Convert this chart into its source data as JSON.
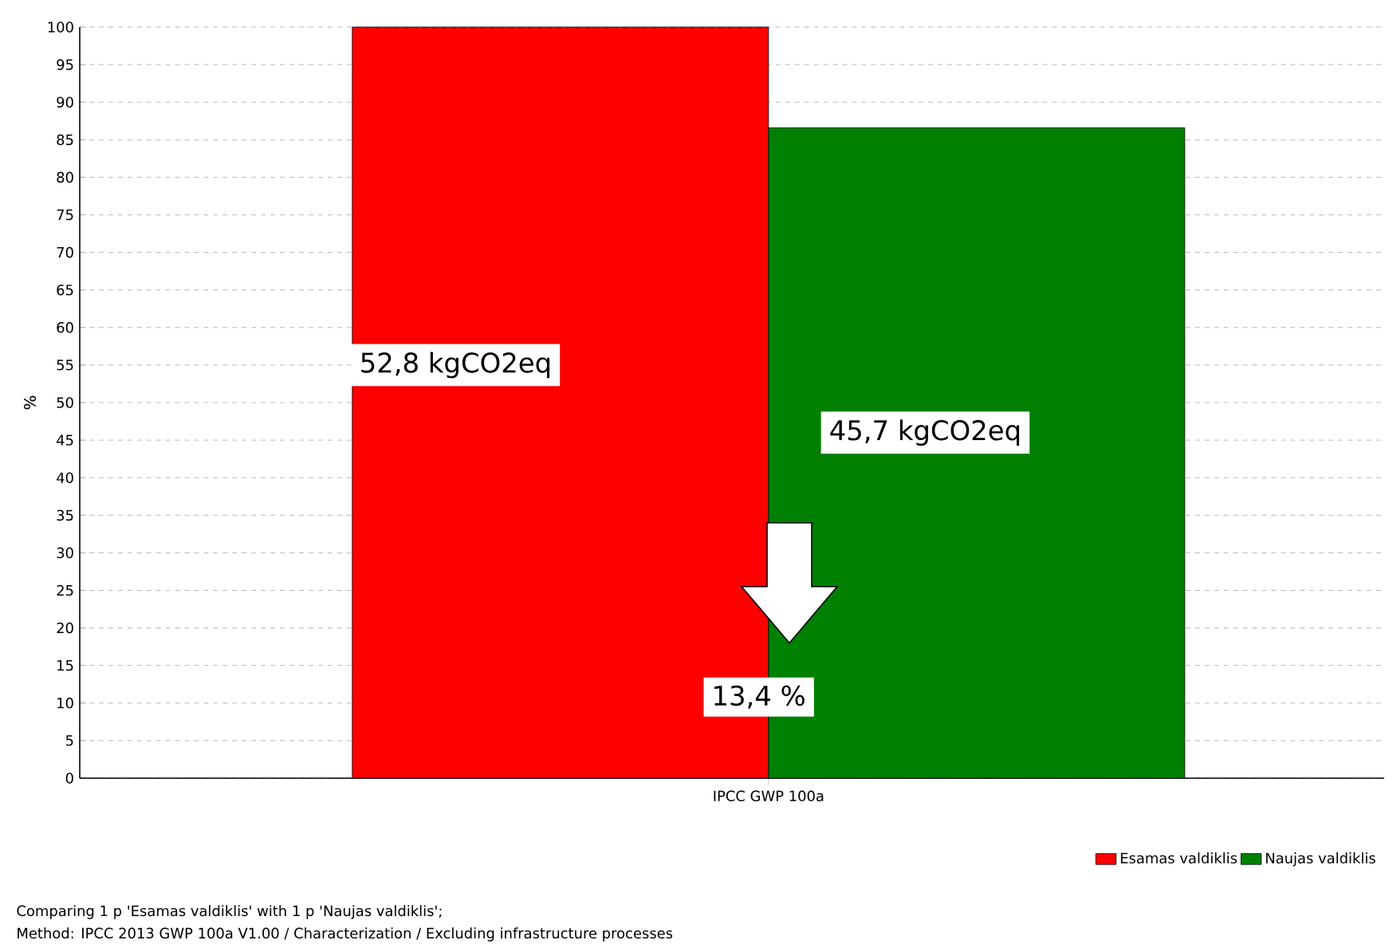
{
  "chart_data": {
    "type": "bar",
    "categories": [
      "IPCC GWP 100a"
    ],
    "series": [
      {
        "name": "Esamas valdiklis",
        "color": "#ff0000",
        "values": [
          100
        ]
      },
      {
        "name": "Naujas valdiklis",
        "color": "#008000",
        "values": [
          86.6
        ]
      }
    ],
    "ylabel": "%",
    "ylim": [
      0,
      100
    ],
    "yticks": [
      0,
      5,
      10,
      15,
      20,
      25,
      30,
      35,
      40,
      45,
      50,
      55,
      60,
      65,
      70,
      75,
      80,
      85,
      90,
      95,
      100
    ],
    "grid": "y",
    "legend": "bottom right",
    "annotations": [
      "52,8 kgCO2eq",
      "45,7 kgCO2eq",
      "13,4 %",
      "Comparing 1 p 'Esamas valdiklis' with 1 p 'Naujas valdiklis';",
      "Method: IPCC 2013 GWP 100a V1.00 / Characterization / Excluding infrastructure processes"
    ]
  }
}
